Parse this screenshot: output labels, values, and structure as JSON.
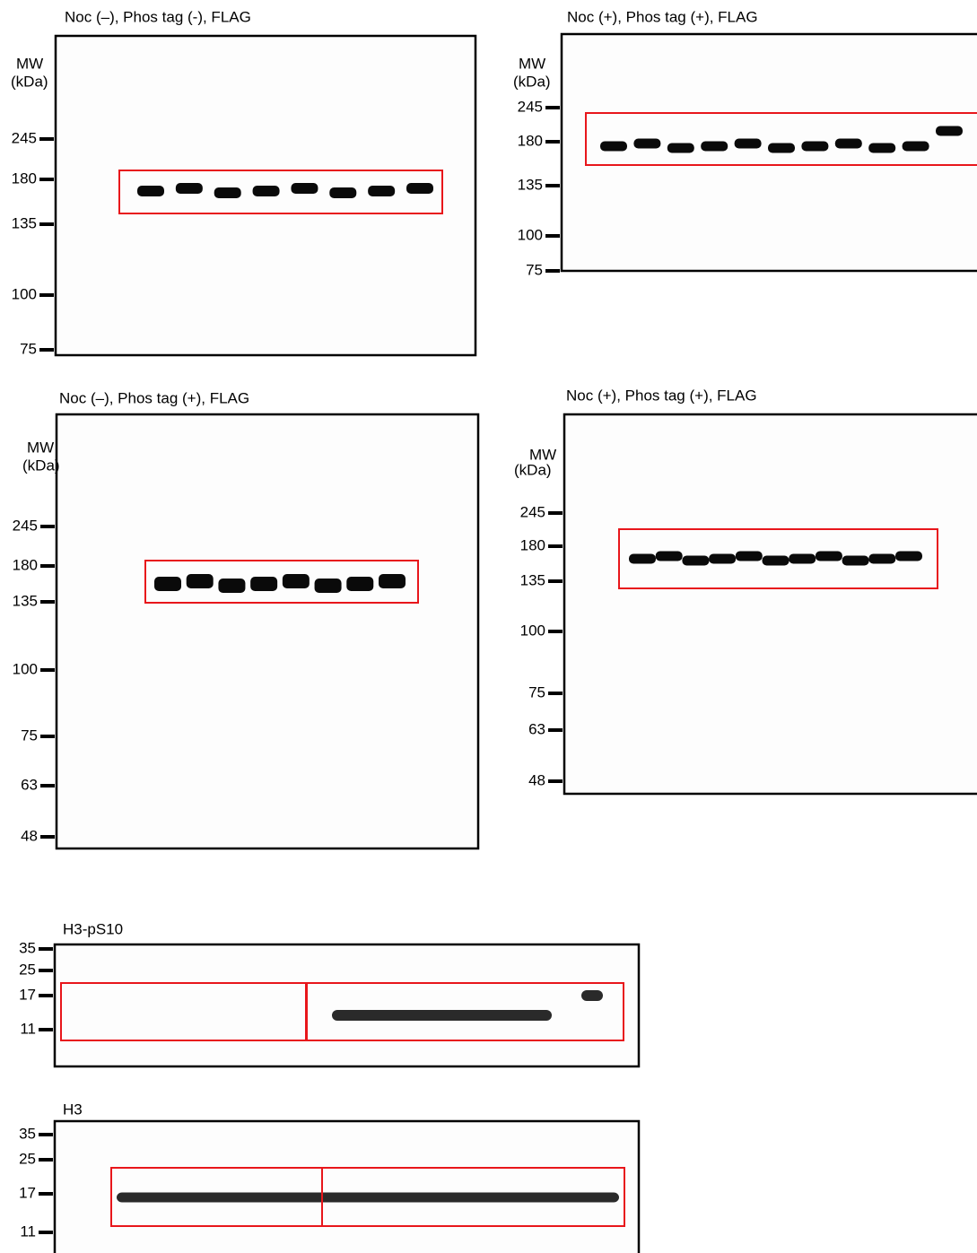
{
  "panels": [
    {
      "title": "Noc (–), Phos tag (-),  FLAG",
      "mw": "MW",
      "unit": "(kDa)",
      "markers": [
        245,
        180,
        135,
        100,
        75
      ]
    },
    {
      "title": "Noc (+), Phos tag (+),  FLAG",
      "mw": "MW",
      "unit": "(kDa)",
      "markers": [
        245,
        180,
        135,
        100,
        75
      ]
    },
    {
      "title": "Noc (–), Phos tag (+),  FLAG",
      "mw": "MW",
      "unit": "(kDa)",
      "markers": [
        245,
        180,
        135,
        100,
        75,
        63,
        48
      ]
    },
    {
      "title": "Noc (+), Phos tag (+),  FLAG",
      "mw": "MW",
      "unit": "(kDa)",
      "markers": [
        245,
        180,
        135,
        100,
        75,
        63,
        48
      ]
    },
    {
      "title": "H3-pS10",
      "markers": [
        35,
        25,
        17,
        11
      ]
    },
    {
      "title": "H3",
      "markers": [
        35,
        25,
        17,
        11
      ]
    }
  ]
}
